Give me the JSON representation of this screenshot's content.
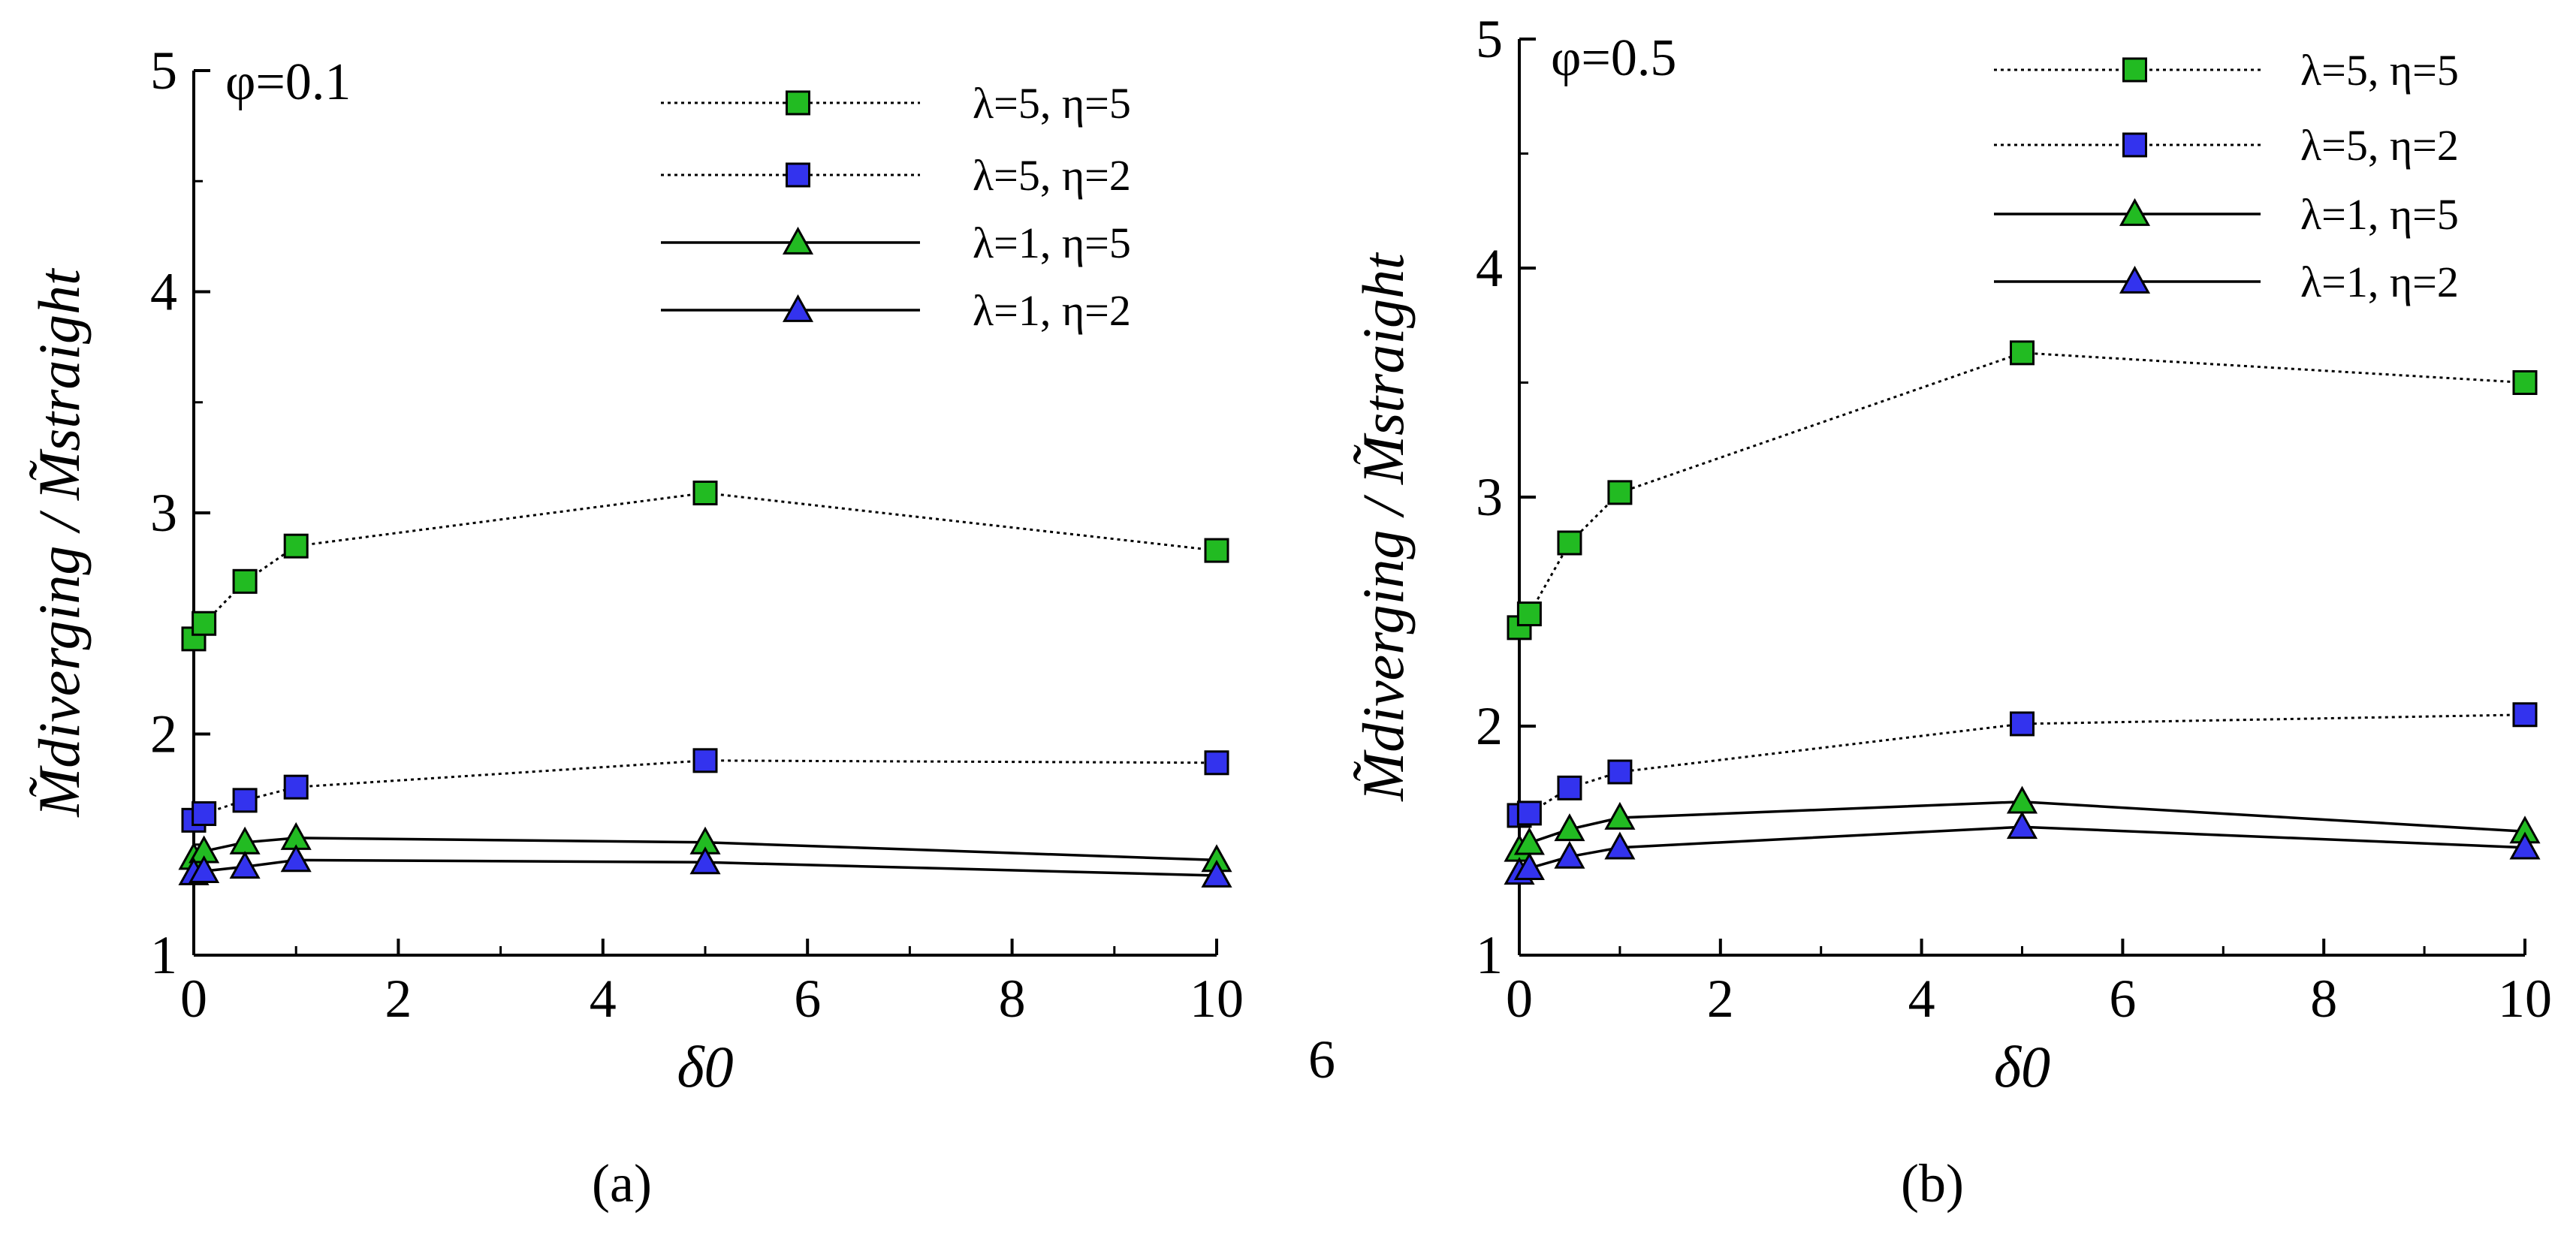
{
  "chart_data": [
    {
      "type": "line",
      "panel": "a",
      "caption": "(a)",
      "annotation": "φ=0.1",
      "title": "",
      "xlabel": "δ0",
      "ylabel": "M̃diverging / M̃straight",
      "xlim": [
        0,
        10
      ],
      "ylim": [
        1,
        5
      ],
      "xticks": [
        "0",
        "2",
        "4",
        "6",
        "8",
        "10"
      ],
      "yticks": [
        "1",
        "2",
        "3",
        "4",
        "5"
      ],
      "x": [
        0,
        0.1,
        0.5,
        1,
        5,
        10
      ],
      "series": [
        {
          "name": "λ=5, η=5",
          "marker": "square",
          "color": "#22bb22",
          "line": "dotted",
          "values": [
            2.43,
            2.5,
            2.69,
            2.85,
            3.09,
            2.83
          ]
        },
        {
          "name": "λ=5, η=2",
          "marker": "square",
          "color": "#3333ee",
          "line": "dotted",
          "values": [
            1.61,
            1.64,
            1.7,
            1.76,
            1.88,
            1.87
          ]
        },
        {
          "name": "λ=1, η=5",
          "marker": "triangle",
          "color": "#22bb22",
          "line": "solid",
          "values": [
            1.44,
            1.47,
            1.51,
            1.53,
            1.51,
            1.43
          ]
        },
        {
          "name": "λ=1, η=2",
          "marker": "triangle",
          "color": "#3333ee",
          "line": "solid",
          "values": [
            1.37,
            1.38,
            1.4,
            1.43,
            1.42,
            1.36
          ]
        }
      ],
      "extra_label": "6"
    },
    {
      "type": "line",
      "panel": "b",
      "caption": "(b)",
      "annotation": "φ=0.5",
      "title": "",
      "xlabel": "δ0",
      "ylabel": "M̃diverging / M̃straight",
      "xlim": [
        0,
        10
      ],
      "ylim": [
        1,
        5
      ],
      "xticks": [
        "0",
        "2",
        "4",
        "6",
        "8",
        "10"
      ],
      "yticks": [
        "1",
        "2",
        "3",
        "4",
        "5"
      ],
      "x": [
        0,
        0.1,
        0.5,
        1,
        5,
        10
      ],
      "series": [
        {
          "name": "λ=5, η=5",
          "marker": "square",
          "color": "#22bb22",
          "line": "dotted",
          "values": [
            2.43,
            2.49,
            2.8,
            3.02,
            3.63,
            3.5
          ]
        },
        {
          "name": "λ=5, η=2",
          "marker": "square",
          "color": "#3333ee",
          "line": "dotted",
          "values": [
            1.61,
            1.62,
            1.73,
            1.8,
            2.01,
            2.05
          ]
        },
        {
          "name": "λ=1, η=5",
          "marker": "triangle",
          "color": "#22bb22",
          "line": "solid",
          "values": [
            1.46,
            1.49,
            1.55,
            1.6,
            1.67,
            1.54
          ]
        },
        {
          "name": "λ=1, η=2",
          "marker": "triangle",
          "color": "#3333ee",
          "line": "solid",
          "values": [
            1.36,
            1.38,
            1.43,
            1.47,
            1.56,
            1.47
          ]
        }
      ]
    }
  ]
}
